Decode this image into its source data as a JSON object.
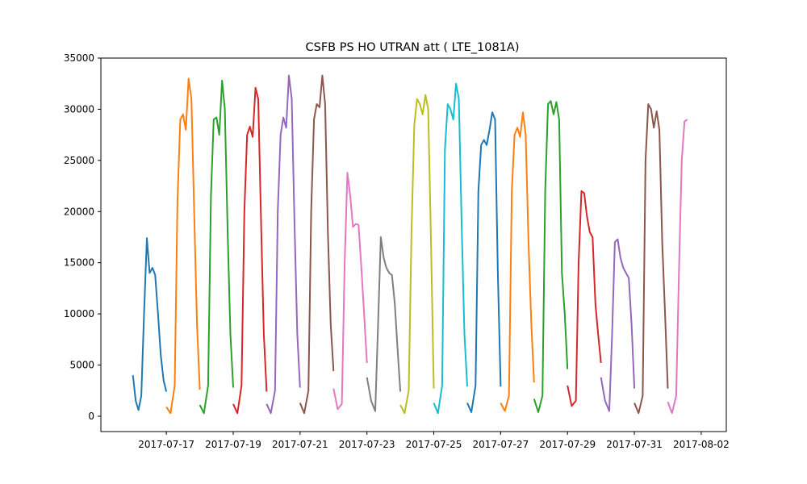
{
  "chart_data": {
    "type": "line",
    "title": "CSFB PS HO UTRAN att ( LTE_1081A)",
    "xlabel": "",
    "ylabel": "",
    "x_axis": {
      "type": "date",
      "min": "2017-07-15T01:00",
      "max": "2017-08-02T18:00"
    },
    "xticks": [
      "2017-07-17",
      "2017-07-19",
      "2017-07-21",
      "2017-07-23",
      "2017-07-25",
      "2017-07-27",
      "2017-07-29",
      "2017-07-31",
      "2017-08-02"
    ],
    "ylim": [
      -1500,
      35000
    ],
    "yticks": [
      0,
      5000,
      10000,
      15000,
      20000,
      25000,
      30000,
      35000
    ],
    "grid": false,
    "legend": "none",
    "series": [
      {
        "color": "#1f77b4",
        "x": [
          "2017-07-16T00:00",
          "2017-07-16T02:00",
          "2017-07-16T04:00",
          "2017-07-16T06:00",
          "2017-07-16T08:00",
          "2017-07-16T10:00",
          "2017-07-16T12:00",
          "2017-07-16T14:00",
          "2017-07-16T16:00",
          "2017-07-16T18:00",
          "2017-07-16T20:00",
          "2017-07-16T22:00",
          "2017-07-17T00:00"
        ],
        "y": [
          4000,
          1500,
          600,
          2000,
          10000,
          17400,
          14000,
          14500,
          13800,
          10000,
          6000,
          3500,
          2400
        ]
      },
      {
        "color": "#ff7f0e",
        "x": [
          "2017-07-17T00:00",
          "2017-07-17T03:00",
          "2017-07-17T06:00",
          "2017-07-17T08:00",
          "2017-07-17T10:00",
          "2017-07-17T12:00",
          "2017-07-17T14:00",
          "2017-07-17T16:00",
          "2017-07-17T18:00",
          "2017-07-17T20:00",
          "2017-07-17T22:00",
          "2017-07-18T00:00"
        ],
        "y": [
          900,
          300,
          3000,
          21000,
          29000,
          29500,
          28000,
          33000,
          31000,
          20000,
          9000,
          2600
        ]
      },
      {
        "color": "#2ca02c",
        "x": [
          "2017-07-18T00:00",
          "2017-07-18T03:00",
          "2017-07-18T06:00",
          "2017-07-18T08:00",
          "2017-07-18T10:00",
          "2017-07-18T12:00",
          "2017-07-18T14:00",
          "2017-07-18T16:00",
          "2017-07-18T18:00",
          "2017-07-18T20:00",
          "2017-07-18T22:00",
          "2017-07-19T00:00"
        ],
        "y": [
          1100,
          300,
          3000,
          21500,
          29000,
          29200,
          27500,
          32800,
          30000,
          18000,
          8000,
          2800
        ]
      },
      {
        "color": "#d62728",
        "x": [
          "2017-07-19T00:00",
          "2017-07-19T03:00",
          "2017-07-19T06:00",
          "2017-07-19T08:00",
          "2017-07-19T10:00",
          "2017-07-19T12:00",
          "2017-07-19T14:00",
          "2017-07-19T16:00",
          "2017-07-19T18:00",
          "2017-07-19T20:00",
          "2017-07-19T22:00",
          "2017-07-20T00:00"
        ],
        "y": [
          1200,
          300,
          3000,
          20000,
          27500,
          28300,
          27300,
          32100,
          31000,
          19000,
          8000,
          2400
        ]
      },
      {
        "color": "#9467bd",
        "x": [
          "2017-07-20T00:00",
          "2017-07-20T03:00",
          "2017-07-20T06:00",
          "2017-07-20T08:00",
          "2017-07-20T10:00",
          "2017-07-20T12:00",
          "2017-07-20T14:00",
          "2017-07-20T16:00",
          "2017-07-20T18:00",
          "2017-07-20T20:00",
          "2017-07-20T22:00",
          "2017-07-21T00:00"
        ],
        "y": [
          1200,
          300,
          2500,
          20000,
          27500,
          29200,
          28200,
          33300,
          31000,
          19000,
          8000,
          2800
        ]
      },
      {
        "color": "#8c564b",
        "x": [
          "2017-07-21T00:00",
          "2017-07-21T03:00",
          "2017-07-21T06:00",
          "2017-07-21T08:00",
          "2017-07-21T10:00",
          "2017-07-21T12:00",
          "2017-07-21T14:00",
          "2017-07-21T16:00",
          "2017-07-21T18:00",
          "2017-07-21T20:00",
          "2017-07-21T22:00",
          "2017-07-22T00:00"
        ],
        "y": [
          1300,
          300,
          2500,
          20000,
          29000,
          30500,
          30200,
          33300,
          30500,
          18000,
          9000,
          4400
        ]
      },
      {
        "color": "#e377c2",
        "x": [
          "2017-07-22T00:00",
          "2017-07-22T03:00",
          "2017-07-22T06:00",
          "2017-07-22T08:00",
          "2017-07-22T10:00",
          "2017-07-22T12:00",
          "2017-07-22T14:00",
          "2017-07-22T16:00",
          "2017-07-22T18:00",
          "2017-07-22T20:00",
          "2017-07-22T22:00",
          "2017-07-23T00:00"
        ],
        "y": [
          2700,
          700,
          1200,
          15000,
          23800,
          21500,
          18500,
          18800,
          18700,
          14500,
          10000,
          5200
        ]
      },
      {
        "color": "#7f7f7f",
        "x": [
          "2017-07-23T00:00",
          "2017-07-23T03:00",
          "2017-07-23T06:00",
          "2017-07-23T08:00",
          "2017-07-23T10:00",
          "2017-07-23T12:00",
          "2017-07-23T14:00",
          "2017-07-23T16:00",
          "2017-07-23T18:00",
          "2017-07-23T20:00",
          "2017-07-23T22:00",
          "2017-07-24T00:00"
        ],
        "y": [
          3800,
          1500,
          500,
          9000,
          17500,
          15500,
          14500,
          14000,
          13800,
          11000,
          6500,
          2400
        ]
      },
      {
        "color": "#bcbd22",
        "x": [
          "2017-07-24T00:00",
          "2017-07-24T03:00",
          "2017-07-24T06:00",
          "2017-07-24T08:00",
          "2017-07-24T10:00",
          "2017-07-24T12:00",
          "2017-07-24T14:00",
          "2017-07-24T16:00",
          "2017-07-24T18:00",
          "2017-07-24T20:00",
          "2017-07-24T22:00",
          "2017-07-25T00:00"
        ],
        "y": [
          1100,
          300,
          2500,
          18000,
          28500,
          31000,
          30500,
          29500,
          31400,
          30000,
          17000,
          2700
        ]
      },
      {
        "color": "#17becf",
        "x": [
          "2017-07-25T00:00",
          "2017-07-25T03:00",
          "2017-07-25T06:00",
          "2017-07-25T08:00",
          "2017-07-25T10:00",
          "2017-07-25T12:00",
          "2017-07-25T14:00",
          "2017-07-25T16:00",
          "2017-07-25T18:00",
          "2017-07-25T20:00",
          "2017-07-25T22:00",
          "2017-07-26T00:00"
        ],
        "y": [
          1300,
          300,
          3000,
          26000,
          30500,
          30000,
          29000,
          32500,
          31000,
          19000,
          8000,
          2900
        ]
      },
      {
        "color": "#1f77b4",
        "x": [
          "2017-07-26T00:00",
          "2017-07-26T03:00",
          "2017-07-26T06:00",
          "2017-07-26T08:00",
          "2017-07-26T10:00",
          "2017-07-26T12:00",
          "2017-07-26T14:00",
          "2017-07-26T16:00",
          "2017-07-26T18:00",
          "2017-07-26T20:00",
          "2017-07-26T22:00",
          "2017-07-27T00:00"
        ],
        "y": [
          1300,
          400,
          3000,
          22000,
          26500,
          27000,
          26500,
          28000,
          29700,
          29000,
          14000,
          2900
        ]
      },
      {
        "color": "#ff7f0e",
        "x": [
          "2017-07-27T00:00",
          "2017-07-27T03:00",
          "2017-07-27T06:00",
          "2017-07-27T08:00",
          "2017-07-27T10:00",
          "2017-07-27T12:00",
          "2017-07-27T14:00",
          "2017-07-27T16:00",
          "2017-07-27T18:00",
          "2017-07-27T20:00",
          "2017-07-27T22:00",
          "2017-07-28T00:00"
        ],
        "y": [
          1300,
          500,
          2000,
          22000,
          27500,
          28200,
          27300,
          29700,
          27500,
          17000,
          9000,
          3300
        ]
      },
      {
        "color": "#2ca02c",
        "x": [
          "2017-07-28T00:00",
          "2017-07-28T03:00",
          "2017-07-28T06:00",
          "2017-07-28T08:00",
          "2017-07-28T10:00",
          "2017-07-28T12:00",
          "2017-07-28T14:00",
          "2017-07-28T16:00",
          "2017-07-28T18:00",
          "2017-07-28T20:00",
          "2017-07-28T22:00",
          "2017-07-29T00:00"
        ],
        "y": [
          1700,
          400,
          2000,
          22000,
          30500,
          30800,
          29500,
          30700,
          29000,
          14000,
          10000,
          4600
        ]
      },
      {
        "color": "#d62728",
        "x": [
          "2017-07-29T00:00",
          "2017-07-29T03:00",
          "2017-07-29T06:00",
          "2017-07-29T08:00",
          "2017-07-29T10:00",
          "2017-07-29T12:00",
          "2017-07-29T14:00",
          "2017-07-29T16:00",
          "2017-07-29T18:00",
          "2017-07-29T20:00",
          "2017-07-29T22:00",
          "2017-07-30T00:00"
        ],
        "y": [
          3000,
          1000,
          1500,
          15000,
          22000,
          21800,
          19500,
          18000,
          17500,
          11000,
          8000,
          5200
        ]
      },
      {
        "color": "#9467bd",
        "x": [
          "2017-07-30T00:00",
          "2017-07-30T03:00",
          "2017-07-30T06:00",
          "2017-07-30T08:00",
          "2017-07-30T10:00",
          "2017-07-30T12:00",
          "2017-07-30T14:00",
          "2017-07-30T16:00",
          "2017-07-30T18:00",
          "2017-07-30T20:00",
          "2017-07-30T22:00",
          "2017-07-31T00:00"
        ],
        "y": [
          3800,
          1500,
          500,
          8000,
          17000,
          17300,
          15500,
          14500,
          14000,
          13500,
          9000,
          2700
        ]
      },
      {
        "color": "#8c564b",
        "x": [
          "2017-07-31T00:00",
          "2017-07-31T03:00",
          "2017-07-31T06:00",
          "2017-07-31T08:00",
          "2017-07-31T10:00",
          "2017-07-31T12:00",
          "2017-07-31T14:00",
          "2017-07-31T16:00",
          "2017-07-31T18:00",
          "2017-07-31T20:00",
          "2017-07-31T22:00",
          "2017-08-01T00:00"
        ],
        "y": [
          1300,
          300,
          2000,
          25000,
          30500,
          30000,
          28200,
          29800,
          28000,
          17000,
          10000,
          2700
        ]
      },
      {
        "color": "#e377c2",
        "x": [
          "2017-08-01T00:00",
          "2017-08-01T03:00",
          "2017-08-01T06:00",
          "2017-08-01T08:00",
          "2017-08-01T10:00",
          "2017-08-01T12:00",
          "2017-08-01T14:00"
        ],
        "y": [
          1400,
          300,
          2000,
          14000,
          25000,
          28800,
          29000
        ]
      }
    ]
  }
}
